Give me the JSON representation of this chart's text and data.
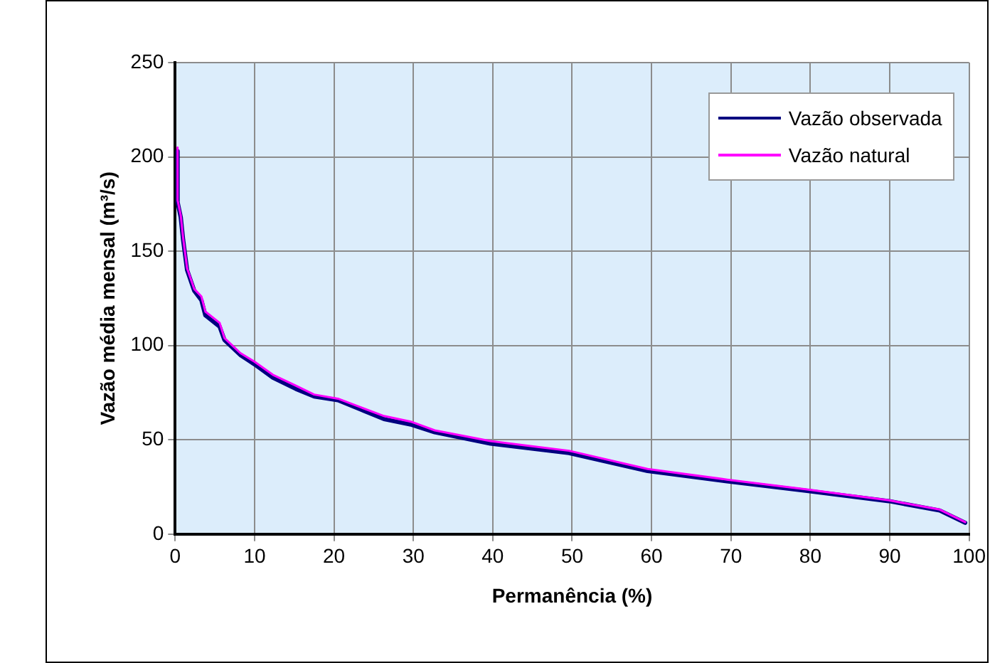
{
  "chart_data": {
    "type": "line",
    "xlabel": "Permanência (%)",
    "ylabel": "Vazão média mensal (m³/s)",
    "xlim": [
      0,
      100
    ],
    "xticks": [
      0,
      10,
      20,
      30,
      40,
      50,
      60,
      70,
      80,
      90,
      100
    ],
    "ylim": [
      0,
      250
    ],
    "yticks": [
      0,
      50,
      100,
      150,
      200,
      250
    ],
    "grid": true,
    "legend": "top right",
    "marker": "none",
    "line_style": "solid",
    "series": [
      {
        "name": "Vazão observada",
        "color": "#000080",
        "x": [
          0.3,
          0.3,
          0.7,
          1.0,
          1.5,
          2.4,
          3.3,
          3.8,
          5.6,
          6.2,
          8.2,
          10,
          12.3,
          15.2,
          17.5,
          20.5,
          23.4,
          26.3,
          29.8,
          32.7,
          39.7,
          49.6,
          59.5,
          69.5,
          79.4,
          89.9,
          96.3,
          99.5
        ],
        "values": [
          203,
          176,
          168,
          156,
          140,
          129,
          124,
          116,
          110,
          103,
          95,
          90,
          83,
          77,
          73,
          71,
          66,
          61,
          58,
          54,
          48,
          43,
          33.5,
          28,
          23,
          17.5,
          12.5,
          6
        ]
      },
      {
        "name": "Vazão natural",
        "color": "#ff00ff",
        "x": [
          0.3,
          0.3,
          0.7,
          1.0,
          1.5,
          2.4,
          3.3,
          3.8,
          5.6,
          6.2,
          8.2,
          10,
          12.3,
          15.2,
          17.5,
          20.5,
          23.4,
          26.3,
          29.8,
          32.7,
          39.7,
          49.6,
          59.5,
          69.5,
          79.4,
          89.9,
          96.3,
          99.5
        ],
        "values": [
          205,
          177,
          169,
          157,
          141,
          130,
          126,
          118,
          112,
          104,
          96,
          91.4,
          84.5,
          78.7,
          74,
          71.8,
          67.2,
          62.6,
          59.5,
          55,
          49.3,
          44.2,
          34.5,
          28.9,
          23.8,
          17.9,
          13,
          6.4
        ]
      }
    ]
  }
}
